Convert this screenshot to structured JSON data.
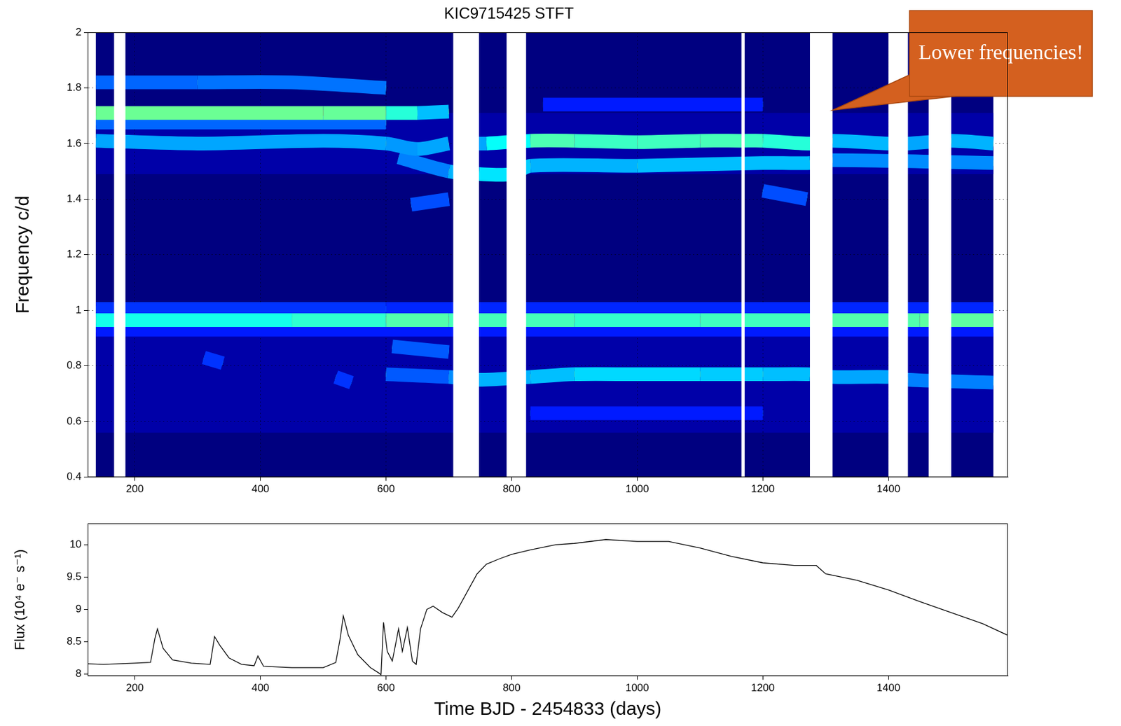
{
  "chart_data": [
    {
      "type": "heatmap",
      "title": "KIC9715425 STFT",
      "y_label": "Frequency c/d",
      "xlim": [
        125,
        1590
      ],
      "xticks": [
        200,
        400,
        600,
        800,
        1000,
        1200,
        1400
      ],
      "ylim": [
        0.4,
        2
      ],
      "yticks": [
        0.4,
        0.6,
        0.8,
        1,
        1.2,
        1.4,
        1.6,
        1.8,
        2
      ],
      "grid": true,
      "time_range": [
        138,
        1567
      ],
      "power_range": [
        0,
        1
      ],
      "bands": [
        {
          "y": [
            0.56,
            0.93
          ],
          "power": 0.04
        },
        {
          "y": [
            1.49,
            1.71
          ],
          "power": 0.04
        }
      ],
      "gaps": [
        [
          167,
          185
        ],
        [
          707,
          748
        ],
        [
          792,
          823
        ],
        [
          1166,
          1171
        ],
        [
          1275,
          1311
        ],
        [
          1400,
          1431
        ],
        [
          1464,
          1500
        ]
      ],
      "tracks": [
        {
          "x": [
            138,
            300,
            450,
            600,
            700,
            900,
            1100,
            1300,
            1450,
            1567
          ],
          "values": [
            0.965,
            0.965,
            0.965,
            0.965,
            0.965,
            0.965,
            0.965,
            0.965,
            0.965,
            0.965
          ],
          "power": [
            0.78,
            0.8,
            0.78,
            0.9,
            0.92,
            0.85,
            0.85,
            0.9,
            0.92,
            0.95
          ]
        },
        {
          "x": [
            138,
            600,
            1000,
            1567
          ],
          "values": [
            1.005,
            1.005,
            1.005,
            1.005
          ],
          "power": [
            0.35,
            0.35,
            0.3,
            0.35
          ]
        },
        {
          "x": [
            138,
            1567
          ],
          "values": [
            0.93,
            0.93
          ],
          "power": [
            0.3,
            0.3
          ]
        },
        {
          "x": [
            138,
            300,
            500,
            600,
            650,
            700
          ],
          "values": [
            1.71,
            1.71,
            1.71,
            1.71,
            1.71,
            1.715
          ],
          "power": [
            0.95,
            0.97,
            0.95,
            0.95,
            0.7,
            0.55
          ]
        },
        {
          "x": [
            138,
            300,
            500,
            600,
            650,
            700
          ],
          "values": [
            1.61,
            1.6,
            1.61,
            1.6,
            1.58,
            1.6
          ],
          "power": [
            0.6,
            0.55,
            0.6,
            0.55,
            0.55,
            0.6
          ]
        },
        {
          "x": [
            748,
            760,
            830,
            900,
            1000,
            1100,
            1166,
            1200,
            1275,
            1311,
            1400,
            1431,
            1500,
            1567
          ],
          "values": [
            1.6,
            1.6,
            1.61,
            1.61,
            1.605,
            1.61,
            1.61,
            1.61,
            1.6,
            1.61,
            1.6,
            1.6,
            1.61,
            1.6
          ],
          "power": [
            0.55,
            0.6,
            0.92,
            0.88,
            0.85,
            0.9,
            0.88,
            0.85,
            0.8,
            0.62,
            0.6,
            0.55,
            0.6,
            0.6
          ]
        },
        {
          "x": [
            138,
            600
          ],
          "values": [
            1.675,
            1.675
          ],
          "power": [
            0.45,
            0.45
          ]
        },
        {
          "x": [
            620,
            700,
            748,
            800,
            830,
            1000,
            1200,
            1275,
            1311,
            1567
          ],
          "values": [
            1.55,
            1.5,
            1.49,
            1.49,
            1.52,
            1.52,
            1.53,
            1.53,
            1.54,
            1.53
          ],
          "power": [
            0.5,
            0.5,
            0.7,
            0.7,
            0.6,
            0.6,
            0.65,
            0.6,
            0.55,
            0.5
          ]
        },
        {
          "x": [
            600,
            700,
            748,
            830,
            900,
            1000,
            1100,
            1200,
            1275,
            1311,
            1400,
            1431,
            1567
          ],
          "values": [
            0.77,
            0.76,
            0.75,
            0.76,
            0.77,
            0.77,
            0.77,
            0.77,
            0.77,
            0.76,
            0.76,
            0.75,
            0.74
          ],
          "power": [
            0.4,
            0.45,
            0.6,
            0.6,
            0.65,
            0.7,
            0.65,
            0.65,
            0.6,
            0.55,
            0.6,
            0.5,
            0.5
          ]
        },
        {
          "x": [
            640,
            700
          ],
          "values": [
            1.38,
            1.4
          ],
          "power": [
            0.4,
            0.4
          ]
        },
        {
          "x": [
            1200,
            1270
          ],
          "values": [
            1.43,
            1.4
          ],
          "power": [
            0.4,
            0.4
          ]
        },
        {
          "x": [
            138,
            300,
            450,
            600
          ],
          "values": [
            1.82,
            1.82,
            1.82,
            1.8
          ],
          "power": [
            0.4,
            0.5,
            0.45,
            0.5
          ]
        },
        {
          "x": [
            610,
            700
          ],
          "values": [
            0.87,
            0.85
          ],
          "power": [
            0.45,
            0.4
          ]
        },
        {
          "x": [
            310,
            340
          ],
          "values": [
            0.83,
            0.81
          ],
          "power": [
            0.35,
            0.35
          ]
        },
        {
          "x": [
            520,
            545
          ],
          "values": [
            0.76,
            0.74
          ],
          "power": [
            0.35,
            0.35
          ]
        },
        {
          "x": [
            850,
            1200
          ],
          "values": [
            1.74,
            1.74
          ],
          "power": [
            0.3,
            0.3
          ]
        },
        {
          "x": [
            830,
            1200
          ],
          "values": [
            0.63,
            0.63
          ],
          "power": [
            0.3,
            0.3
          ]
        }
      ],
      "annotation": {
        "text": "Lower frequencies!",
        "x": 1311,
        "y": 1.72
      }
    },
    {
      "type": "line",
      "x_label": "Time BJD - 2454833 (days)",
      "y_label": "Flux (10⁴ e⁻ s⁻¹)",
      "xlim": [
        125,
        1590
      ],
      "xticks": [
        200,
        400,
        600,
        800,
        1000,
        1200,
        1400
      ],
      "ylim": [
        7.97,
        10.33
      ],
      "yticks": [
        8,
        8.5,
        9,
        9.5,
        10
      ],
      "grid": false,
      "color": "#000000",
      "x": [
        125,
        150,
        200,
        225,
        232,
        236,
        245,
        260,
        290,
        320,
        327,
        335,
        350,
        370,
        390,
        396,
        405,
        450,
        500,
        520,
        527,
        532,
        540,
        555,
        575,
        588,
        592,
        596,
        602,
        610,
        620,
        626,
        634,
        642,
        648,
        655,
        665,
        675,
        690,
        705,
        715,
        745,
        760,
        780,
        800,
        830,
        870,
        900,
        950,
        1000,
        1050,
        1100,
        1150,
        1200,
        1250,
        1285,
        1300,
        1350,
        1400,
        1450,
        1500,
        1550,
        1590
      ],
      "values": [
        8.16,
        8.15,
        8.17,
        8.18,
        8.55,
        8.7,
        8.4,
        8.22,
        8.17,
        8.15,
        8.58,
        8.45,
        8.25,
        8.15,
        8.13,
        8.28,
        8.12,
        8.1,
        8.1,
        8.18,
        8.55,
        8.9,
        8.6,
        8.3,
        8.1,
        8.02,
        7.99,
        8.8,
        8.35,
        8.2,
        8.7,
        8.35,
        8.72,
        8.2,
        8.15,
        8.7,
        9.0,
        9.05,
        8.95,
        8.88,
        9.02,
        9.55,
        9.7,
        9.78,
        9.85,
        9.92,
        10.0,
        10.02,
        10.08,
        10.05,
        10.05,
        9.95,
        9.82,
        9.72,
        9.68,
        9.68,
        9.55,
        9.45,
        9.3,
        9.12,
        8.95,
        8.78,
        8.6
      ]
    }
  ]
}
